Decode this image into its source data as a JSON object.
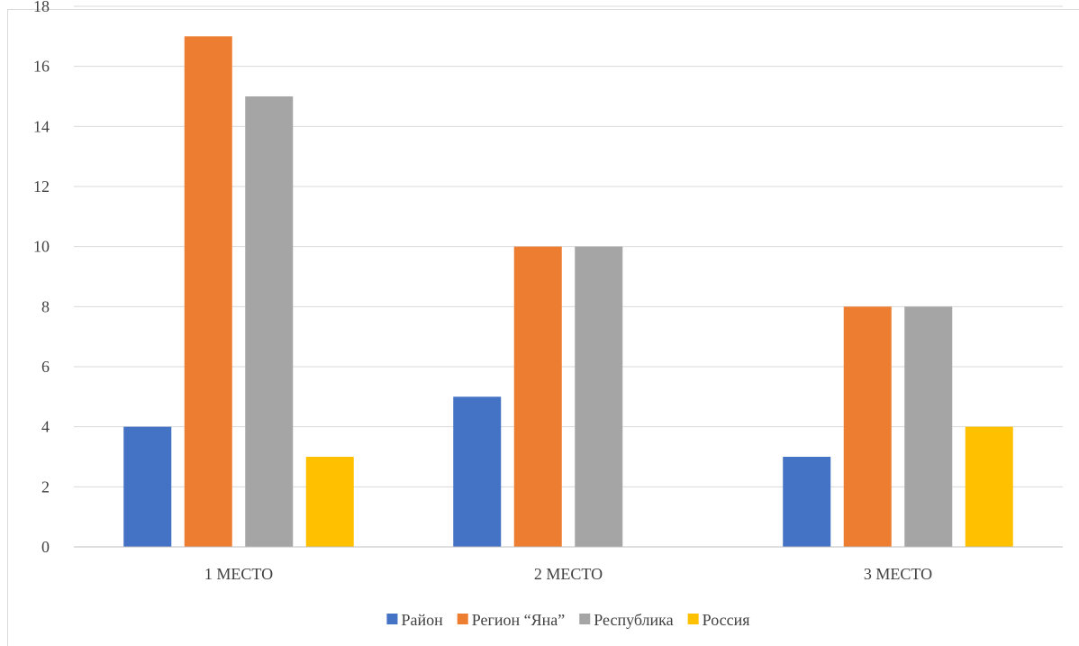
{
  "chart_data": {
    "type": "bar",
    "title": "",
    "xlabel": "",
    "ylabel": "",
    "categories": [
      "1 МЕСТО",
      "2 МЕСТО",
      "3 МЕСТО"
    ],
    "series": [
      {
        "name": "Район",
        "color": "#4472c4",
        "values": [
          4,
          5,
          3
        ]
      },
      {
        "name": "Регион “Яна”",
        "color": "#ed7d31",
        "values": [
          17,
          10,
          8
        ]
      },
      {
        "name": "Республика",
        "color": "#a5a5a5",
        "values": [
          15,
          10,
          8
        ]
      },
      {
        "name": "Россия",
        "color": "#ffc000",
        "values": [
          3,
          0,
          4
        ]
      }
    ],
    "ylim": [
      0,
      18
    ],
    "yticks": [
      0,
      2,
      4,
      6,
      8,
      10,
      12,
      14,
      16,
      18
    ],
    "grid": true,
    "legend_position": "bottom"
  }
}
